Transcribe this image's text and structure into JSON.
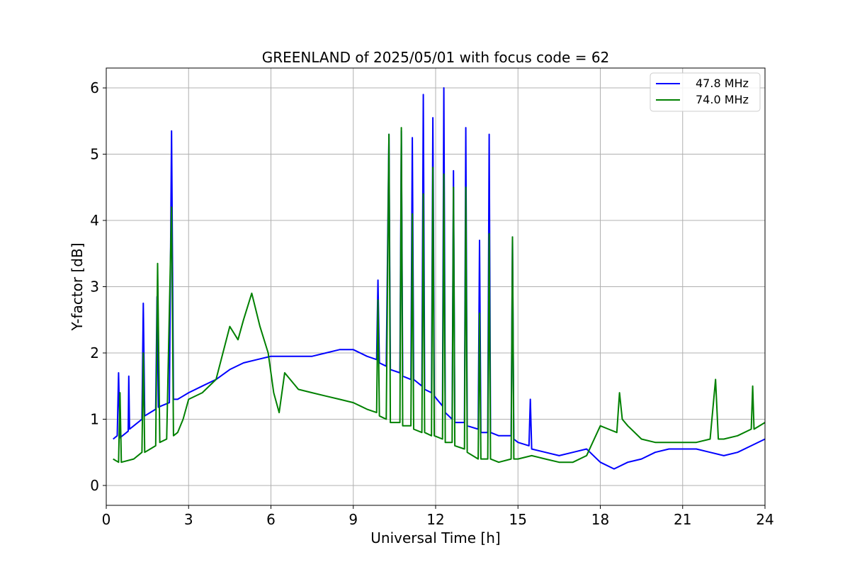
{
  "chart_data": {
    "type": "line",
    "title": "GREENLAND of 2025/05/01 with focus code = 62",
    "xlabel": "Universal Time [h]",
    "ylabel": "Y-factor [dB]",
    "xlim": [
      0,
      24
    ],
    "ylim": [
      -0.3,
      6.3
    ],
    "xticks": [
      0,
      3,
      6,
      9,
      12,
      15,
      18,
      21,
      24
    ],
    "yticks": [
      0,
      1,
      2,
      3,
      4,
      5,
      6
    ],
    "grid": true,
    "legend_position": "top-right",
    "colors": {
      "series_1": "#0000ff",
      "series_2": "#008000"
    },
    "series": [
      {
        "name": "47.8 MHz",
        "color": "#0000ff",
        "points": [
          [
            0.25,
            0.7
          ],
          [
            0.4,
            0.75
          ],
          [
            0.45,
            1.7
          ],
          [
            0.5,
            0.72
          ],
          [
            0.8,
            0.82
          ],
          [
            0.82,
            1.65
          ],
          [
            0.85,
            0.85
          ],
          [
            1.0,
            0.9
          ],
          [
            1.3,
            1.0
          ],
          [
            1.35,
            2.75
          ],
          [
            1.4,
            1.05
          ],
          [
            1.6,
            1.1
          ],
          [
            1.8,
            1.15
          ],
          [
            1.85,
            2.85
          ],
          [
            1.9,
            1.18
          ],
          [
            2.0,
            1.2
          ],
          [
            2.3,
            1.25
          ],
          [
            2.38,
            5.35
          ],
          [
            2.45,
            1.3
          ],
          [
            2.6,
            1.3
          ],
          [
            3.0,
            1.4
          ],
          [
            3.5,
            1.5
          ],
          [
            4.0,
            1.6
          ],
          [
            4.5,
            1.75
          ],
          [
            5.0,
            1.85
          ],
          [
            5.5,
            1.9
          ],
          [
            6.0,
            1.95
          ],
          [
            6.5,
            1.95
          ],
          [
            7.0,
            1.95
          ],
          [
            7.5,
            1.95
          ],
          [
            8.0,
            2.0
          ],
          [
            8.5,
            2.05
          ],
          [
            9.0,
            2.05
          ],
          [
            9.5,
            1.95
          ],
          [
            9.85,
            1.9
          ],
          [
            9.9,
            3.1
          ],
          [
            9.95,
            1.85
          ],
          [
            10.2,
            1.8
          ],
          [
            10.3,
            5.3
          ],
          [
            10.35,
            1.75
          ],
          [
            10.7,
            1.7
          ],
          [
            10.75,
            5.35
          ],
          [
            10.8,
            1.65
          ],
          [
            11.1,
            1.6
          ],
          [
            11.15,
            5.25
          ],
          [
            11.2,
            1.6
          ],
          [
            11.5,
            1.5
          ],
          [
            11.55,
            5.9
          ],
          [
            11.6,
            1.45
          ],
          [
            11.85,
            1.4
          ],
          [
            11.9,
            5.55
          ],
          [
            11.95,
            1.35
          ],
          [
            12.25,
            1.2
          ],
          [
            12.3,
            6.0
          ],
          [
            12.35,
            1.1
          ],
          [
            12.6,
            1.0
          ],
          [
            12.65,
            4.75
          ],
          [
            12.7,
            0.95
          ],
          [
            13.05,
            0.95
          ],
          [
            13.1,
            5.4
          ],
          [
            13.15,
            0.9
          ],
          [
            13.55,
            0.85
          ],
          [
            13.6,
            3.7
          ],
          [
            13.65,
            0.8
          ],
          [
            13.9,
            0.8
          ],
          [
            13.95,
            5.3
          ],
          [
            14.0,
            0.8
          ],
          [
            14.3,
            0.75
          ],
          [
            14.75,
            0.75
          ],
          [
            14.8,
            3.75
          ],
          [
            14.85,
            0.7
          ],
          [
            15.0,
            0.65
          ],
          [
            15.4,
            0.6
          ],
          [
            15.45,
            1.3
          ],
          [
            15.5,
            0.55
          ],
          [
            16.0,
            0.5
          ],
          [
            16.5,
            0.45
          ],
          [
            17.0,
            0.5
          ],
          [
            17.5,
            0.55
          ],
          [
            18.0,
            0.35
          ],
          [
            18.5,
            0.25
          ],
          [
            19.0,
            0.35
          ],
          [
            19.5,
            0.4
          ],
          [
            20.0,
            0.5
          ],
          [
            20.5,
            0.55
          ],
          [
            21.0,
            0.55
          ],
          [
            21.5,
            0.55
          ],
          [
            22.0,
            0.5
          ],
          [
            22.5,
            0.45
          ],
          [
            23.0,
            0.5
          ],
          [
            23.5,
            0.6
          ],
          [
            24.0,
            0.7
          ]
        ]
      },
      {
        "name": "74.0 MHz",
        "color": "#008000",
        "points": [
          [
            0.25,
            0.4
          ],
          [
            0.45,
            0.35
          ],
          [
            0.5,
            1.4
          ],
          [
            0.55,
            0.35
          ],
          [
            1.0,
            0.4
          ],
          [
            1.3,
            0.5
          ],
          [
            1.35,
            2.0
          ],
          [
            1.4,
            0.5
          ],
          [
            1.8,
            0.6
          ],
          [
            1.87,
            3.35
          ],
          [
            1.95,
            0.65
          ],
          [
            2.2,
            0.7
          ],
          [
            2.38,
            4.2
          ],
          [
            2.45,
            0.75
          ],
          [
            2.6,
            0.8
          ],
          [
            2.8,
            1.0
          ],
          [
            3.0,
            1.3
          ],
          [
            3.5,
            1.4
          ],
          [
            4.0,
            1.6
          ],
          [
            4.5,
            2.4
          ],
          [
            4.8,
            2.2
          ],
          [
            5.0,
            2.5
          ],
          [
            5.3,
            2.9
          ],
          [
            5.6,
            2.4
          ],
          [
            5.9,
            2.0
          ],
          [
            6.1,
            1.4
          ],
          [
            6.3,
            1.1
          ],
          [
            6.5,
            1.7
          ],
          [
            7.0,
            1.45
          ],
          [
            7.5,
            1.4
          ],
          [
            8.0,
            1.35
          ],
          [
            8.5,
            1.3
          ],
          [
            9.0,
            1.25
          ],
          [
            9.5,
            1.15
          ],
          [
            9.85,
            1.1
          ],
          [
            9.9,
            2.8
          ],
          [
            9.95,
            1.05
          ],
          [
            10.2,
            1.0
          ],
          [
            10.3,
            5.3
          ],
          [
            10.35,
            0.95
          ],
          [
            10.7,
            0.95
          ],
          [
            10.75,
            5.4
          ],
          [
            10.8,
            0.9
          ],
          [
            11.1,
            0.9
          ],
          [
            11.15,
            4.1
          ],
          [
            11.2,
            0.85
          ],
          [
            11.5,
            0.8
          ],
          [
            11.55,
            4.4
          ],
          [
            11.6,
            0.8
          ],
          [
            11.85,
            0.75
          ],
          [
            11.9,
            4.8
          ],
          [
            11.95,
            0.75
          ],
          [
            12.25,
            0.7
          ],
          [
            12.3,
            4.7
          ],
          [
            12.35,
            0.65
          ],
          [
            12.6,
            0.65
          ],
          [
            12.65,
            4.5
          ],
          [
            12.7,
            0.6
          ],
          [
            13.05,
            0.55
          ],
          [
            13.1,
            4.5
          ],
          [
            13.15,
            0.5
          ],
          [
            13.55,
            0.4
          ],
          [
            13.6,
            2.6
          ],
          [
            13.65,
            0.4
          ],
          [
            13.9,
            0.4
          ],
          [
            13.95,
            3.8
          ],
          [
            14.0,
            0.4
          ],
          [
            14.3,
            0.35
          ],
          [
            14.75,
            0.4
          ],
          [
            14.8,
            3.75
          ],
          [
            14.85,
            0.4
          ],
          [
            15.0,
            0.4
          ],
          [
            15.5,
            0.45
          ],
          [
            16.0,
            0.4
          ],
          [
            16.5,
            0.35
          ],
          [
            17.0,
            0.35
          ],
          [
            17.5,
            0.45
          ],
          [
            18.0,
            0.9
          ],
          [
            18.3,
            0.85
          ],
          [
            18.6,
            0.8
          ],
          [
            18.7,
            1.4
          ],
          [
            18.8,
            1.0
          ],
          [
            19.0,
            0.9
          ],
          [
            19.5,
            0.7
          ],
          [
            20.0,
            0.65
          ],
          [
            20.5,
            0.65
          ],
          [
            21.0,
            0.65
          ],
          [
            21.5,
            0.65
          ],
          [
            22.0,
            0.7
          ],
          [
            22.2,
            1.6
          ],
          [
            22.3,
            0.7
          ],
          [
            22.5,
            0.7
          ],
          [
            23.0,
            0.75
          ],
          [
            23.5,
            0.85
          ],
          [
            23.55,
            1.5
          ],
          [
            23.6,
            0.85
          ],
          [
            24.0,
            0.95
          ]
        ]
      }
    ]
  }
}
